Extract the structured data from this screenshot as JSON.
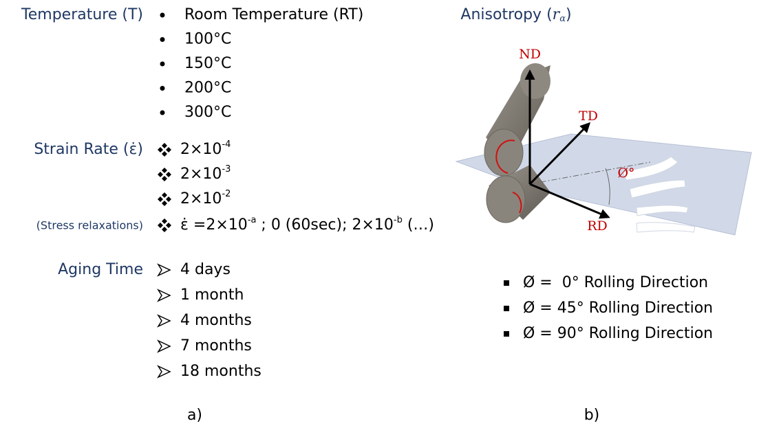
{
  "panel_a": {
    "temperature": {
      "label": "Temperature (T)",
      "items": [
        "Room Temperature (RT)",
        "100°C",
        "150°C",
        "200°C",
        "300°C"
      ]
    },
    "strain_rate": {
      "label": "Strain Rate (ε̇)",
      "items": [
        {
          "text": "2×10",
          "sup": "-4"
        },
        {
          "text": "2×10",
          "sup": "-3"
        },
        {
          "text": "2×10",
          "sup": "-2"
        }
      ]
    },
    "stress_relaxation": {
      "label": "(Stress relaxations)",
      "parts": [
        {
          "text": "ε̇ =2×10",
          "sup": "-a"
        },
        {
          "text": " ; 0 (60sec); 2×10",
          "sup": "-b"
        },
        {
          "text": " (…)"
        }
      ]
    },
    "aging_time": {
      "label": "Aging Time",
      "items": [
        "4 days",
        "1 month",
        "4 months",
        "7 months",
        "18 months"
      ]
    },
    "caption": "a)"
  },
  "panel_b": {
    "title": {
      "prefix": "Anisotropy (",
      "symbol": "r",
      "subscript": "α",
      "suffix": ")"
    },
    "diagram_labels": {
      "nd": "ND",
      "td": "TD",
      "rd": "RD",
      "angle": "Ø°"
    },
    "items": [
      "Ø =  0° Rolling Direction",
      "Ø = 45° Rolling Direction",
      "Ø = 90° Rolling Direction"
    ],
    "caption": "b)"
  }
}
